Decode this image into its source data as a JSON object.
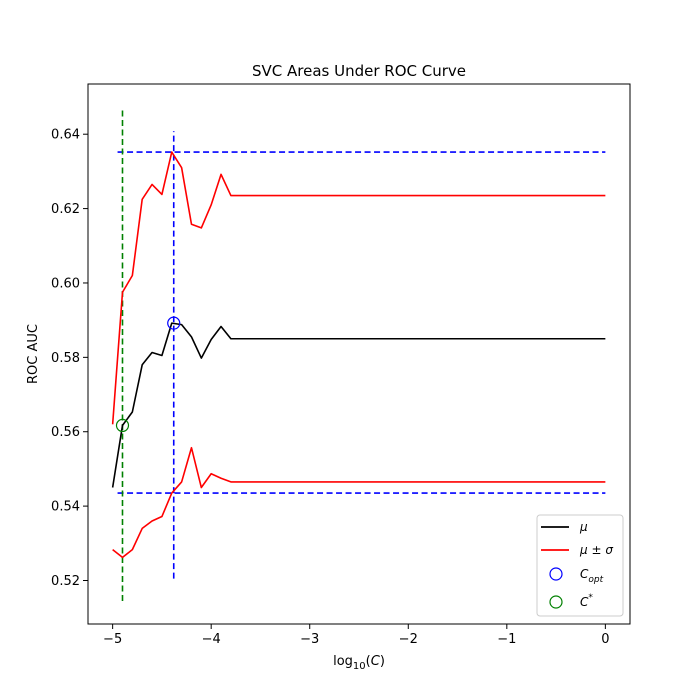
{
  "chart_data": {
    "type": "line",
    "title": "SVC Areas Under ROC Curve",
    "xlabel": "log10(C)",
    "ylabel": "ROC AUC",
    "xlim": [
      -5.25,
      0.25
    ],
    "ylim": [
      0.5083,
      0.6535
    ],
    "xticks": [
      -5,
      -4,
      -3,
      -2,
      -1,
      0
    ],
    "xtick_labels": [
      "−5",
      "−4",
      "−3",
      "−2",
      "−1",
      "0"
    ],
    "yticks": [
      0.52,
      0.54,
      0.56,
      0.58,
      0.6,
      0.62,
      0.64
    ],
    "ytick_labels": [
      "0.52",
      "0.54",
      "0.56",
      "0.58",
      "0.60",
      "0.62",
      "0.64"
    ],
    "x": [
      -5.0,
      -4.9,
      -4.8,
      -4.7,
      -4.6,
      -4.5,
      -4.4,
      -4.3,
      -4.2,
      -4.1,
      -4.0,
      -3.9,
      -3.8,
      0.0
    ],
    "series": [
      {
        "name": "μ",
        "color": "#000000",
        "values": [
          0.545,
          0.5617,
          0.5653,
          0.578,
          0.5813,
          0.5805,
          0.5892,
          0.5888,
          0.5855,
          0.5798,
          0.5848,
          0.5883,
          0.585,
          0.585
        ]
      },
      {
        "name": "μ ± σ (upper)",
        "color": "#ff0000",
        "values": [
          0.562,
          0.5975,
          0.602,
          0.6225,
          0.6265,
          0.6238,
          0.6352,
          0.631,
          0.6158,
          0.6148,
          0.621,
          0.6292,
          0.6235,
          0.6235
        ]
      },
      {
        "name": "μ ± σ (lower)",
        "color": "#ff0000",
        "values": [
          0.5283,
          0.5262,
          0.5283,
          0.534,
          0.536,
          0.5372,
          0.5435,
          0.5465,
          0.5557,
          0.545,
          0.5487,
          0.5475,
          0.5465,
          0.5465
        ]
      }
    ],
    "hlines": [
      {
        "y": 0.6352,
        "x_range": [
          -4.95,
          0.0
        ],
        "color": "#0000ff",
        "style": "dashed"
      },
      {
        "y": 0.5435,
        "x_range": [
          -4.95,
          0.0
        ],
        "color": "#0000ff",
        "style": "dashed"
      }
    ],
    "vlines": [
      {
        "x": -4.9,
        "y_range": [
          0.5145,
          0.6468
        ],
        "color": "#008000",
        "style": "dashed"
      },
      {
        "x": -4.38,
        "y_range": [
          0.5205,
          0.6408
        ],
        "color": "#0000ff",
        "style": "dashed"
      }
    ],
    "markers": [
      {
        "name": "C_opt",
        "x": -4.38,
        "y": 0.5892,
        "color": "#0000ff"
      },
      {
        "name": "C*",
        "x": -4.9,
        "y": 0.5617,
        "color": "#008000"
      }
    ],
    "legend": {
      "position": "lower-right",
      "entries": [
        {
          "label": "μ",
          "kind": "line",
          "color": "#000000"
        },
        {
          "label": "μ ± σ",
          "kind": "line",
          "color": "#ff0000"
        },
        {
          "label": "C_opt",
          "kind": "marker",
          "color": "#0000ff"
        },
        {
          "label": "C*",
          "kind": "marker",
          "color": "#008000"
        }
      ]
    },
    "grid": false
  }
}
